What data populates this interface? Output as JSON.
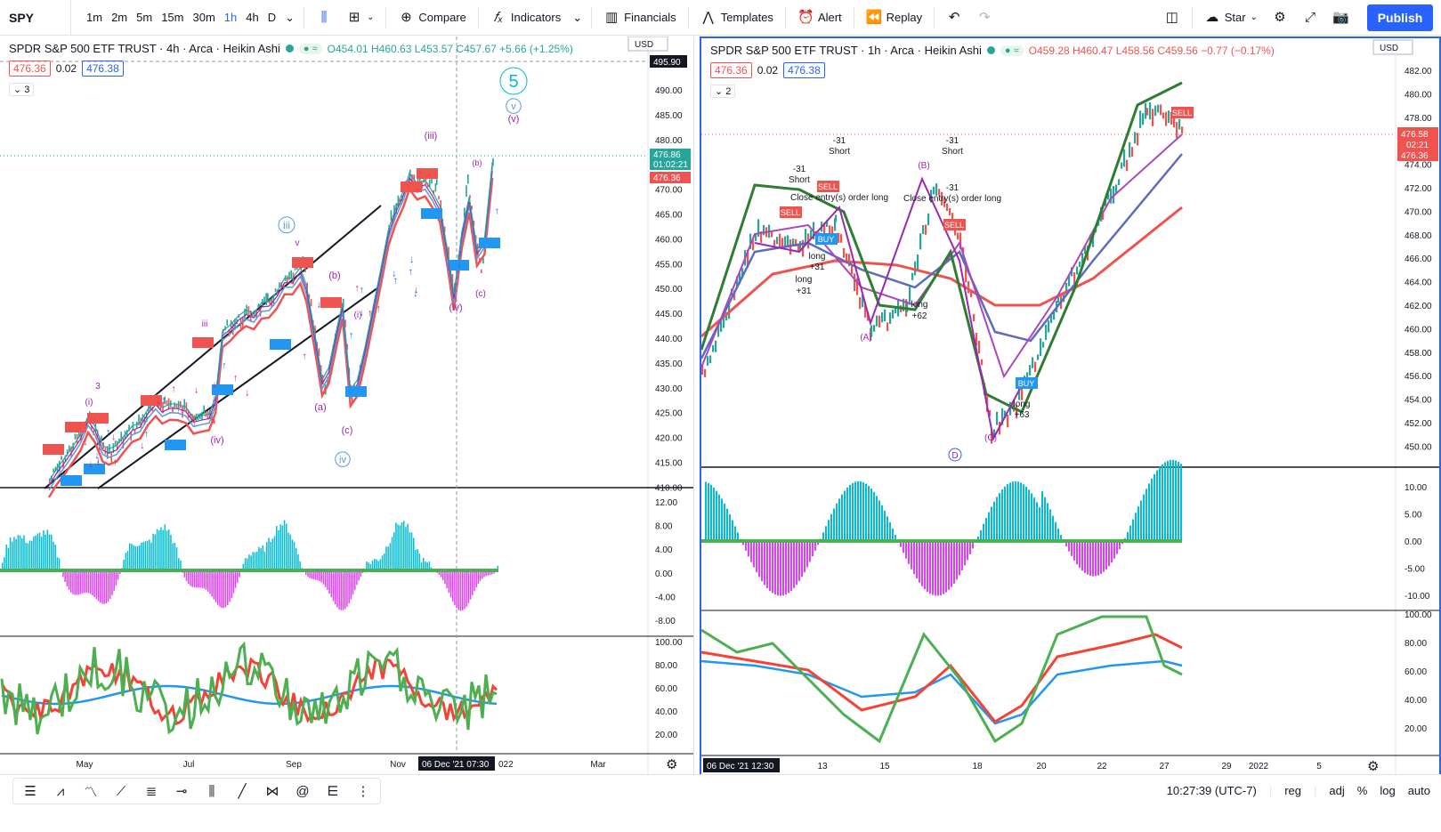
{
  "toolbar": {
    "symbol": "SPY",
    "timeframes": [
      "1m",
      "2m",
      "5m",
      "15m",
      "30m",
      "1h",
      "4h",
      "D"
    ],
    "active_tf": "1h",
    "compare": "Compare",
    "indicators": "Indicators",
    "financials": "Financials",
    "templates": "Templates",
    "alert": "Alert",
    "replay": "Replay",
    "layout": "Star",
    "publish": "Publish"
  },
  "left": {
    "title": "SPDR S&P 500 ETF TRUST · 4h · Arca · Heikin Ashi",
    "ohlc": "O454.01 H460.63 L453.57 C457.67 +5.66 (+1.25%)",
    "bid": "476.36",
    "spread": "0.02",
    "ask": "476.38",
    "collapsed": "3",
    "currency": "USD",
    "price_ticks": [
      "490.00",
      "485.00",
      "480.00",
      "475.00",
      "470.00",
      "465.00",
      "460.00",
      "455.00",
      "450.00",
      "445.00",
      "440.00",
      "435.00",
      "430.00",
      "425.00",
      "420.00",
      "415.00",
      "410.00"
    ],
    "cross_price": "495.90",
    "last_price": "476.86",
    "countdown": "01:02:21",
    "bid_tag": "476.36",
    "time_ticks": [
      "May",
      "Jul",
      "Sep",
      "Nov",
      "Mar"
    ],
    "cursor_time": "06 Dec '21   07:30",
    "cursor_year": "022",
    "osc_ticks": [
      "12.00",
      "8.00",
      "4.00",
      "0.00",
      "-4.00",
      "-8.00"
    ],
    "stoch_ticks": [
      "100.00",
      "80.00",
      "60.00",
      "40.00",
      "20.00"
    ],
    "wave_labels": [
      "5",
      "v",
      "(v)",
      "(iii)",
      "iii",
      "(b)",
      "(iv)",
      "(c)",
      "(a)",
      "(c)",
      "iv",
      "(iv)",
      "3",
      "(i)",
      "iii",
      "(b)",
      "(i)",
      "v"
    ]
  },
  "right": {
    "title": "SPDR S&P 500 ETF TRUST · 1h · Arca · Heikin Ashi",
    "ohlc": "O459.28 H460.47 L458.56 C459.56 −0.77 (−0.17%)",
    "bid": "476.36",
    "spread": "0.02",
    "ask": "476.38",
    "collapsed": "2",
    "currency": "USD",
    "price_ticks": [
      "482.00",
      "480.00",
      "478.00",
      "476.00",
      "474.00",
      "472.00",
      "470.00",
      "468.00",
      "466.00",
      "464.00",
      "462.00",
      "460.00",
      "458.00",
      "456.00",
      "454.00",
      "452.00",
      "450.00"
    ],
    "last_price": "476.58",
    "countdown": "02:21",
    "bid_tag": "476.36",
    "time_ticks": [
      "13",
      "15",
      "18",
      "20",
      "22",
      "27",
      "29",
      "2022",
      "5"
    ],
    "cursor_time": "06 Dec '21   12:30",
    "osc_ticks": [
      "10.00",
      "5.00",
      "0.00",
      "-5.00",
      "-10.00"
    ],
    "stoch_ticks": [
      "100.00",
      "80.00",
      "60.00",
      "40.00",
      "20.00"
    ],
    "annotations": [
      "-31",
      "Short",
      "-31",
      "Short",
      "-31",
      "Short",
      "Close entry(s) order long",
      "Close entry(s) order long",
      "-31",
      "long",
      "+31",
      "long",
      "+31",
      "long",
      "+62",
      "long",
      "+63",
      "(A)",
      "(B)",
      "(C)",
      "D",
      "SELL",
      "SELL",
      "SELL",
      "SELL",
      "BUY",
      "BUY"
    ]
  },
  "status": {
    "time": "10:27:39 (UTC-7)",
    "session": "reg",
    "adj": "adj",
    "pct": "%",
    "log": "log",
    "auto": "auto"
  }
}
